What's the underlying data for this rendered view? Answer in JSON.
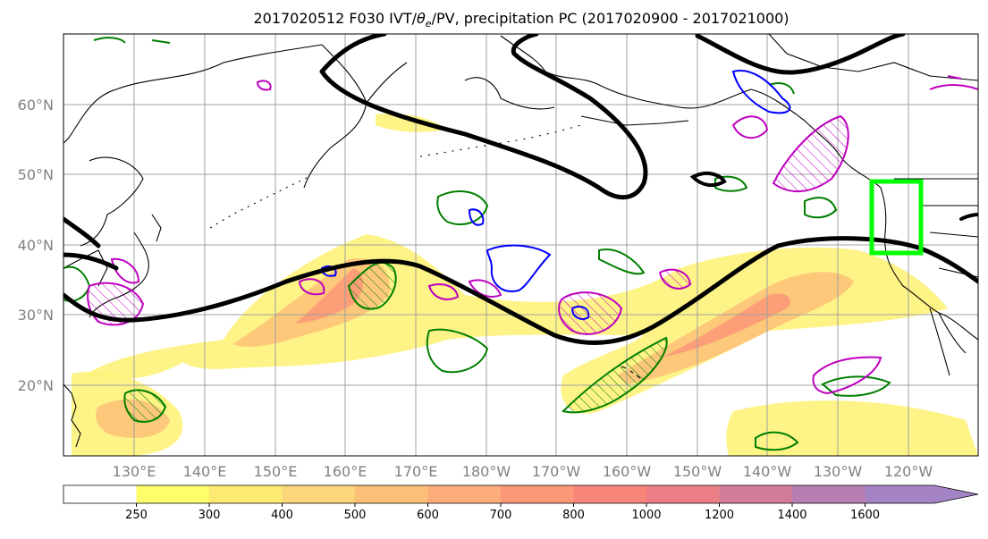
{
  "figure": {
    "title_main": "2017020512 F030 IVT/",
    "title_symbol": "θ",
    "title_subscript": "e",
    "title_rest": "/PV, precipitation PC (2017020900 - 2017021000)"
  },
  "map": {
    "lon_range_east_deg": [
      120,
      250
    ],
    "lat_range_deg": [
      10,
      70
    ],
    "lat_ticks": [
      {
        "value": 20,
        "label": "20°N"
      },
      {
        "value": 30,
        "label": "30°N"
      },
      {
        "value": 40,
        "label": "40°N"
      },
      {
        "value": 50,
        "label": "50°N"
      },
      {
        "value": 60,
        "label": "60°N"
      }
    ],
    "lon_ticks": [
      {
        "value": 130,
        "label": "130°E"
      },
      {
        "value": 140,
        "label": "140°E"
      },
      {
        "value": 150,
        "label": "150°E"
      },
      {
        "value": 160,
        "label": "160°E"
      },
      {
        "value": 170,
        "label": "170°E"
      },
      {
        "value": 180,
        "label": "180°W"
      },
      {
        "value": 190,
        "label": "170°W"
      },
      {
        "value": 200,
        "label": "160°W"
      },
      {
        "value": 210,
        "label": "150°W"
      },
      {
        "value": 220,
        "label": "140°W"
      },
      {
        "value": 230,
        "label": "130°W"
      },
      {
        "value": 240,
        "label": "120°W"
      }
    ],
    "gridlines": true,
    "grid_color": "#a0a0a0",
    "coast_color": "#000000",
    "highlight_box": {
      "lon": [
        237,
        244
      ],
      "lat": [
        39,
        49
      ],
      "color": "#00ff00"
    },
    "contour_colors": {
      "theta_e": "#000000",
      "pv_green": "#007f00",
      "pv_blue": "#0000ff",
      "magenta": "#bf00bf"
    }
  },
  "colorbar": {
    "levels": [
      {
        "label": "250",
        "color": "#ffffff"
      },
      {
        "label": "300",
        "color": "#fefe6a"
      },
      {
        "label": "400",
        "color": "#fdea72"
      },
      {
        "label": "500",
        "color": "#fdd57a"
      },
      {
        "label": "600",
        "color": "#fdc078"
      },
      {
        "label": "700",
        "color": "#fcad7a"
      },
      {
        "label": "800",
        "color": "#fc9778"
      },
      {
        "label": "1000",
        "color": "#f98479"
      },
      {
        "label": "1200",
        "color": "#ec7f85"
      },
      {
        "label": "1400",
        "color": "#d27c98"
      },
      {
        "label": "1600",
        "color": "#b77eb4"
      },
      {
        "label": "",
        "color": "#a584c6"
      }
    ],
    "extend": "max"
  }
}
